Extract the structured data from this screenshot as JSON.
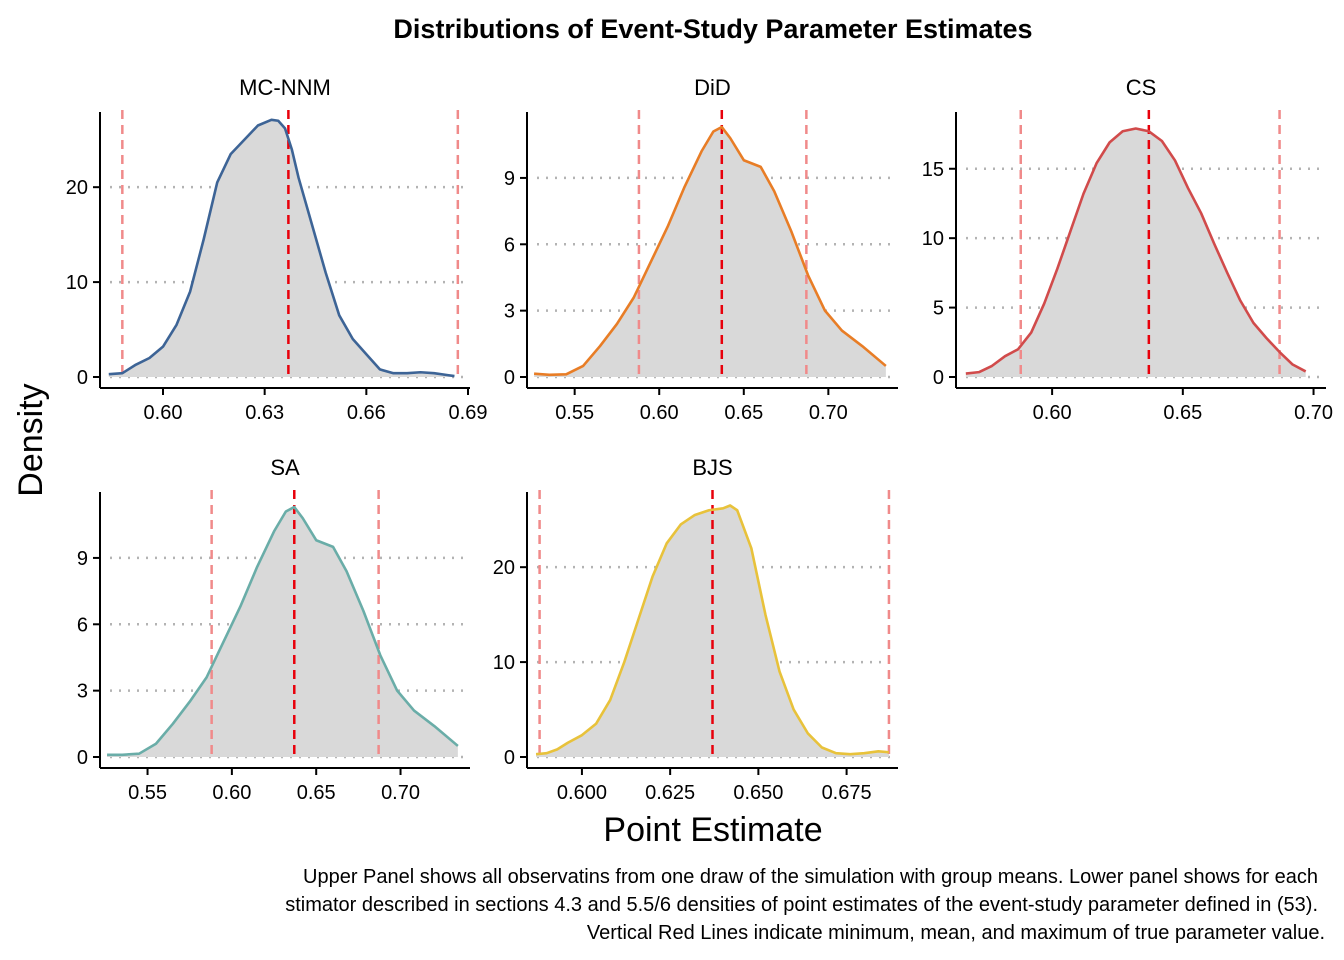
{
  "chart_data": {
    "type": "area",
    "title": "Distributions of Event-Study Parameter Estimates",
    "xlabel": "Point Estimate",
    "ylabel": "Density",
    "caption": [
      "Upper Panel shows all observatins from one draw of the simulation with group means. Lower panel shows for each",
      "stimator described in sections 4.3 and 5.5/6 densities of point estimates of the event-study parameter defined in (53).",
      "Vertical Red Lines indicate minimum, mean, and maximum of true parameter value."
    ],
    "reference_lines": {
      "min": 0.588,
      "mean": 0.637,
      "max": 0.687,
      "style": "dashed",
      "min_max_color": "#f08a8a",
      "mean_color": "#e8000b"
    },
    "grid": "horizontal-dotted",
    "fill_color": "#d9d9d9",
    "panels": [
      {
        "name": "MC-NNM",
        "color": "#3d6496",
        "xlim": [
          0.582,
          0.69
        ],
        "ylim": [
          0,
          27.5
        ],
        "xticks": [
          0.6,
          0.63,
          0.66,
          0.69
        ],
        "xtick_labels": [
          "0.60",
          "0.63",
          "0.66",
          "0.69"
        ],
        "yticks": [
          0,
          10,
          20
        ],
        "ytick_labels": [
          "0",
          "10",
          "20"
        ],
        "x": [
          0.584,
          0.588,
          0.592,
          0.596,
          0.6,
          0.604,
          0.608,
          0.612,
          0.616,
          0.62,
          0.624,
          0.628,
          0.632,
          0.634,
          0.636,
          0.638,
          0.64,
          0.644,
          0.648,
          0.652,
          0.656,
          0.66,
          0.664,
          0.668,
          0.672,
          0.676,
          0.68,
          0.684,
          0.686
        ],
        "y": [
          0.3,
          0.4,
          1.3,
          2.0,
          3.2,
          5.5,
          9.0,
          14.5,
          20.5,
          23.5,
          25.0,
          26.5,
          27.1,
          27.0,
          26.2,
          24.0,
          21.0,
          16.0,
          11.0,
          6.5,
          4.0,
          2.4,
          0.8,
          0.4,
          0.4,
          0.5,
          0.4,
          0.2,
          0.1
        ]
      },
      {
        "name": "DiD",
        "color": "#e87d26",
        "xlim": [
          0.523,
          0.74
        ],
        "ylim": [
          0,
          11.8
        ],
        "xticks": [
          0.55,
          0.6,
          0.65,
          0.7
        ],
        "xtick_labels": [
          "0.55",
          "0.60",
          "0.65",
          "0.70"
        ],
        "yticks": [
          0,
          3,
          6,
          9
        ],
        "ytick_labels": [
          "0",
          "3",
          "6",
          "9"
        ],
        "x": [
          0.526,
          0.535,
          0.545,
          0.555,
          0.565,
          0.575,
          0.585,
          0.595,
          0.605,
          0.615,
          0.625,
          0.632,
          0.637,
          0.642,
          0.65,
          0.66,
          0.668,
          0.678,
          0.688,
          0.698,
          0.708,
          0.72,
          0.734
        ],
        "y": [
          0.15,
          0.1,
          0.12,
          0.5,
          1.4,
          2.4,
          3.6,
          5.2,
          6.8,
          8.6,
          10.2,
          11.1,
          11.3,
          10.8,
          9.8,
          9.5,
          8.4,
          6.6,
          4.6,
          3.0,
          2.1,
          1.4,
          0.5
        ]
      },
      {
        "name": "CS",
        "color": "#d14b4b",
        "xlim": [
          0.564,
          0.704
        ],
        "ylim": [
          0,
          18.8
        ],
        "xticks": [
          0.6,
          0.65,
          0.7
        ],
        "xtick_labels": [
          "0.60",
          "0.65",
          "0.70"
        ],
        "yticks": [
          0,
          5,
          10,
          15
        ],
        "ytick_labels": [
          "0",
          "5",
          "10",
          "15"
        ],
        "x": [
          0.567,
          0.572,
          0.577,
          0.582,
          0.587,
          0.592,
          0.597,
          0.602,
          0.607,
          0.612,
          0.617,
          0.622,
          0.627,
          0.632,
          0.637,
          0.642,
          0.647,
          0.652,
          0.657,
          0.662,
          0.667,
          0.672,
          0.677,
          0.682,
          0.687,
          0.692,
          0.697
        ],
        "y": [
          0.25,
          0.35,
          0.8,
          1.5,
          2.0,
          3.2,
          5.3,
          7.8,
          10.5,
          13.2,
          15.4,
          16.9,
          17.7,
          17.9,
          17.7,
          17.0,
          15.6,
          13.6,
          11.8,
          9.6,
          7.5,
          5.5,
          3.9,
          2.8,
          1.8,
          0.9,
          0.4
        ]
      },
      {
        "name": "SA",
        "color": "#6aada8",
        "xlim": [
          0.523,
          0.74
        ],
        "ylim": [
          0,
          11.8
        ],
        "xticks": [
          0.55,
          0.6,
          0.65,
          0.7
        ],
        "xtick_labels": [
          "0.55",
          "0.60",
          "0.65",
          "0.70"
        ],
        "yticks": [
          0,
          3,
          6,
          9
        ],
        "ytick_labels": [
          "0",
          "3",
          "6",
          "9"
        ],
        "x": [
          0.526,
          0.535,
          0.545,
          0.555,
          0.565,
          0.575,
          0.585,
          0.595,
          0.605,
          0.615,
          0.625,
          0.632,
          0.637,
          0.642,
          0.65,
          0.66,
          0.668,
          0.678,
          0.688,
          0.698,
          0.708,
          0.72,
          0.734
        ],
        "y": [
          0.1,
          0.1,
          0.15,
          0.6,
          1.5,
          2.5,
          3.6,
          5.2,
          6.8,
          8.6,
          10.2,
          11.1,
          11.3,
          10.8,
          9.8,
          9.5,
          8.4,
          6.6,
          4.6,
          3.0,
          2.1,
          1.4,
          0.5
        ]
      },
      {
        "name": "BJS",
        "color": "#e8c23b",
        "xlim": [
          0.585,
          0.689
        ],
        "ylim": [
          0,
          27.5
        ],
        "xticks": [
          0.6,
          0.625,
          0.65,
          0.675
        ],
        "xtick_labels": [
          "0.600",
          "0.625",
          "0.650",
          "0.675"
        ],
        "yticks": [
          0,
          10,
          20
        ],
        "ytick_labels": [
          "0",
          "10",
          "20"
        ],
        "x": [
          0.587,
          0.59,
          0.593,
          0.596,
          0.6,
          0.604,
          0.608,
          0.612,
          0.616,
          0.62,
          0.624,
          0.628,
          0.632,
          0.636,
          0.64,
          0.642,
          0.644,
          0.648,
          0.652,
          0.656,
          0.66,
          0.664,
          0.668,
          0.672,
          0.676,
          0.68,
          0.684,
          0.687
        ],
        "y": [
          0.3,
          0.4,
          0.8,
          1.5,
          2.3,
          3.5,
          6.0,
          10.0,
          14.5,
          19.0,
          22.5,
          24.5,
          25.5,
          26.0,
          26.2,
          26.5,
          26.0,
          22.0,
          15.0,
          9.0,
          5.0,
          2.5,
          1.0,
          0.4,
          0.3,
          0.4,
          0.6,
          0.5
        ]
      }
    ]
  }
}
